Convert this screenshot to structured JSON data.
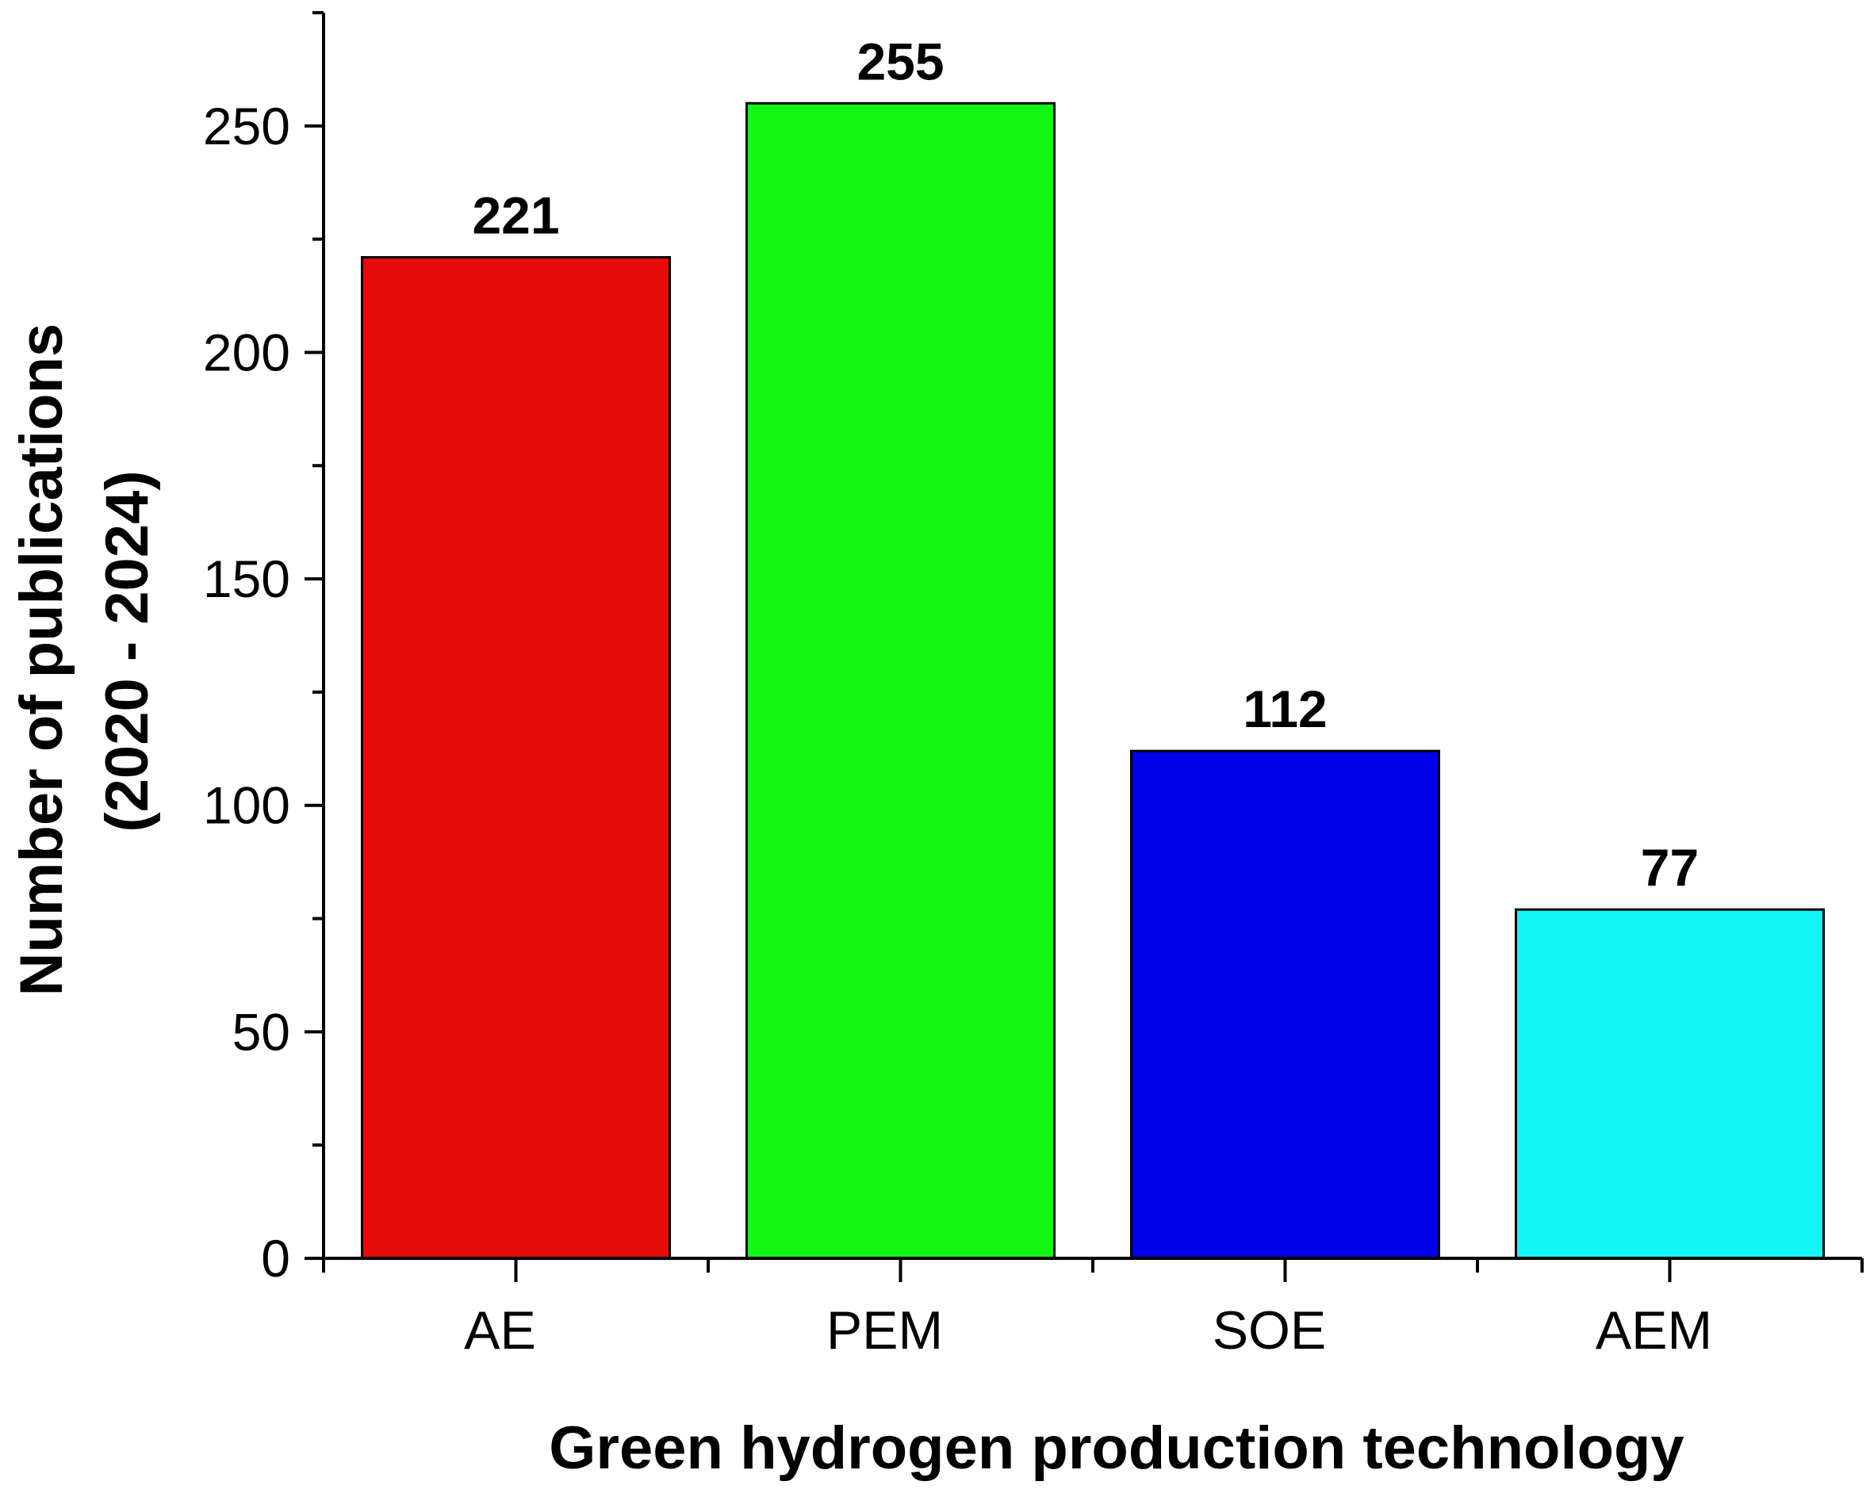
{
  "chart_data": {
    "type": "bar",
    "categories": [
      "AE",
      "PEM",
      "SOE",
      "AEM"
    ],
    "values": [
      221,
      255,
      112,
      77
    ],
    "data_labels": [
      "221",
      "255",
      "112",
      "77"
    ],
    "colors": [
      "#e60a0a",
      "#14f514",
      "#0000e6",
      "#14f5f5"
    ],
    "title": "",
    "xlabel": "Green hydrogen production technology",
    "ylabel_lines": [
      "Number of publications",
      "(2020 - 2024)"
    ],
    "ylim": [
      0,
      275
    ],
    "yticks": [
      0,
      50,
      100,
      150,
      200,
      250
    ],
    "ytick_labels": [
      "0",
      "50",
      "100",
      "150",
      "200",
      "250"
    ],
    "minor_step": 25,
    "grid": false,
    "legend": "none"
  }
}
